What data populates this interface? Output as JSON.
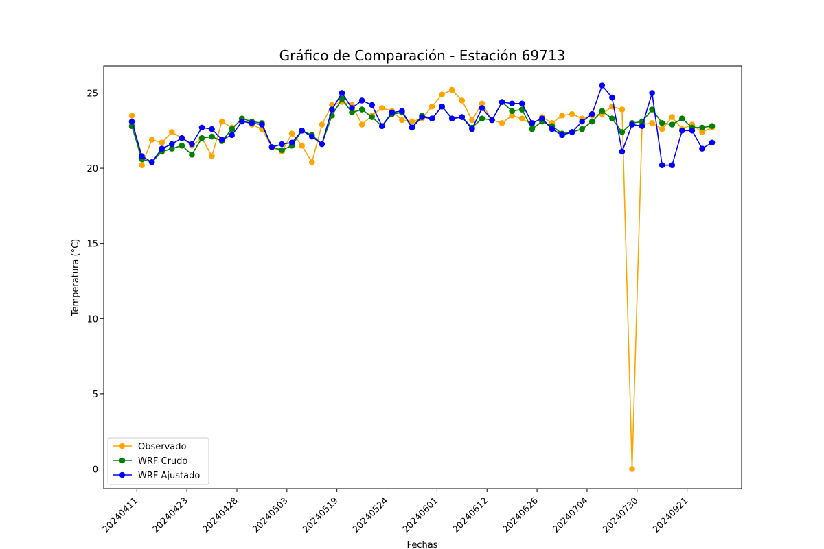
{
  "chart_data": {
    "type": "line",
    "title": "Gráfico de Comparación - Estación 69713",
    "xlabel": "Fechas",
    "ylabel": "Temperatura (°C)",
    "ylim": [
      -1.3,
      26.8
    ],
    "yticks": [
      0,
      5,
      10,
      15,
      20,
      25
    ],
    "xtick_labels": [
      "20240411",
      "20240423",
      "20240428",
      "20240503",
      "20240519",
      "20240524",
      "20240601",
      "20240612",
      "20240626",
      "20240704",
      "20240730",
      "20240921"
    ],
    "xtick_positions": [
      0.5,
      5.5,
      10.5,
      15.5,
      20.5,
      25.5,
      30.5,
      35.5,
      40.5,
      45.5,
      50.5,
      55.5
    ],
    "x": [
      0,
      1,
      2,
      3,
      4,
      5,
      6,
      7,
      8,
      9,
      10,
      11,
      12,
      13,
      14,
      15,
      16,
      17,
      18,
      19,
      20,
      21,
      22,
      23,
      24,
      25,
      26,
      27,
      28,
      29,
      30,
      31,
      32,
      33,
      34,
      35,
      36,
      37,
      38,
      39,
      40,
      41,
      42,
      43,
      44,
      45,
      46,
      47,
      48,
      49,
      50,
      51,
      52,
      53,
      54,
      55,
      56,
      57,
      58
    ],
    "grid": false,
    "legend_position": "lower-left",
    "series": [
      {
        "name": "Observado",
        "color": "#ffa500",
        "values": [
          23.5,
          20.2,
          21.9,
          21.7,
          22.4,
          22.0,
          21.5,
          22.0,
          20.8,
          23.1,
          22.7,
          23.2,
          22.9,
          22.6,
          21.4,
          21.1,
          22.3,
          21.5,
          20.4,
          22.9,
          24.2,
          24.4,
          24.2,
          22.9,
          23.5,
          24.0,
          23.8,
          23.2,
          23.1,
          23.3,
          24.1,
          24.9,
          25.2,
          24.5,
          23.2,
          24.3,
          23.2,
          23.0,
          23.5,
          23.3,
          22.9,
          23.4,
          23.0,
          23.5,
          23.6,
          23.3,
          23.5,
          23.6,
          24.1,
          23.9,
          0.0,
          22.9,
          23.0,
          22.6,
          23.4,
          22.6,
          22.9,
          22.4,
          22.7
        ]
      },
      {
        "name": "WRF Crudo",
        "color": "#008000",
        "values": [
          22.8,
          20.6,
          20.4,
          21.1,
          21.3,
          21.5,
          20.9,
          22.0,
          22.1,
          21.8,
          22.6,
          23.3,
          23.1,
          23.0,
          21.4,
          21.2,
          21.5,
          22.5,
          22.2,
          21.6,
          23.5,
          24.6,
          23.7,
          23.9,
          23.4,
          22.8,
          23.6,
          23.7,
          22.7,
          23.5,
          23.3,
          24.1,
          23.3,
          23.4,
          22.7,
          23.3,
          23.2,
          24.4,
          23.8,
          23.9,
          22.6,
          23.1,
          22.8,
          22.3,
          22.4,
          22.6,
          23.1,
          23.8,
          23.3,
          22.4,
          23.0,
          23.1,
          23.9,
          23.0,
          22.9,
          23.3,
          22.7,
          22.7,
          22.8
        ]
      },
      {
        "name": "WRF Ajustado",
        "color": "#0000ff",
        "values": [
          23.1,
          20.8,
          20.4,
          21.3,
          21.6,
          22.0,
          21.6,
          22.7,
          22.6,
          21.9,
          22.2,
          23.1,
          23.0,
          22.9,
          21.4,
          21.6,
          21.7,
          22.5,
          22.1,
          21.6,
          23.9,
          25.0,
          24.0,
          24.5,
          24.2,
          22.8,
          23.7,
          23.8,
          22.7,
          23.4,
          23.3,
          24.1,
          23.3,
          23.4,
          22.6,
          24.0,
          23.2,
          24.4,
          24.3,
          24.3,
          23.0,
          23.3,
          22.6,
          22.2,
          22.4,
          23.1,
          23.6,
          25.5,
          24.7,
          21.1,
          22.9,
          22.8,
          25.0,
          20.2,
          20.2,
          22.5,
          22.5,
          21.3,
          21.7
        ]
      }
    ]
  }
}
